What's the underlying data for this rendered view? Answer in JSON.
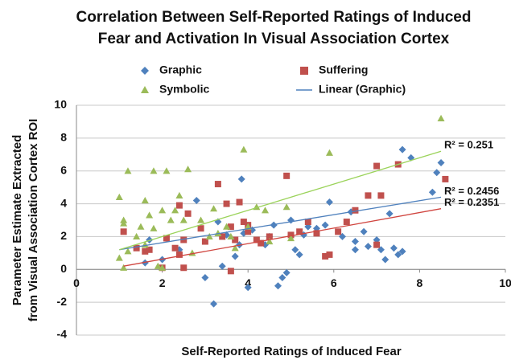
{
  "chart_data": {
    "type": "scatter",
    "title": [
      "Correlation Between Self-Reported Ratings of Induced",
      "Fear and Activation In Visual Association Cortex"
    ],
    "xlabel": "Self-Reported Ratings of Induced Fear",
    "ylabel": [
      "Parameter Estimate Extracted",
      "from Visual Association Cortex ROI"
    ],
    "xlim": [
      0,
      10
    ],
    "xticks": [
      0,
      2,
      4,
      6,
      8,
      10
    ],
    "ylim": [
      -4,
      10
    ],
    "yticks": [
      -4,
      -2,
      0,
      2,
      4,
      6,
      8,
      10
    ],
    "grid": true,
    "series": [
      {
        "name": "Graphic",
        "color": "#4f81bd",
        "marker": "diamond",
        "x": [
          1.6,
          1.7,
          2.0,
          2.4,
          2.8,
          3.0,
          3.2,
          3.3,
          3.4,
          3.5,
          3.7,
          3.8,
          3.85,
          3.9,
          4.0,
          4.1,
          4.4,
          4.5,
          4.6,
          4.7,
          4.8,
          4.9,
          5.0,
          5.0,
          5.1,
          5.2,
          5.3,
          5.4,
          5.6,
          5.8,
          5.9,
          6.2,
          6.4,
          6.5,
          6.5,
          6.7,
          6.8,
          7.0,
          7.1,
          7.2,
          7.3,
          7.4,
          7.5,
          7.6,
          7.6,
          7.8,
          8.3,
          8.4,
          8.5
        ],
        "values": [
          0.4,
          1.8,
          0.6,
          1.2,
          4.2,
          -0.5,
          -2.1,
          2.9,
          0.2,
          2.1,
          0.8,
          1.5,
          5.5,
          2.2,
          -1.1,
          2.4,
          1.5,
          2.0,
          2.7,
          -1.0,
          -0.5,
          -0.2,
          3.0,
          2.0,
          1.2,
          0.9,
          2.1,
          2.6,
          2.5,
          2.7,
          4.1,
          2.0,
          3.5,
          1.7,
          1.2,
          2.3,
          1.4,
          1.8,
          1.2,
          0.6,
          3.4,
          1.3,
          0.9,
          1.1,
          7.3,
          6.8,
          4.7,
          5.9,
          6.5
        ]
      },
      {
        "name": "Suffering",
        "color": "#c0504d",
        "marker": "square",
        "x": [
          1.1,
          1.4,
          1.6,
          1.7,
          2.0,
          2.1,
          2.3,
          2.4,
          2.4,
          2.5,
          2.6,
          2.9,
          3.0,
          3.3,
          3.4,
          3.5,
          3.6,
          3.7,
          3.8,
          3.9,
          4.0,
          4.0,
          4.2,
          4.3,
          4.5,
          4.9,
          5.0,
          5.2,
          5.4,
          5.6,
          5.8,
          5.9,
          6.1,
          6.3,
          6.5,
          6.8,
          7.0,
          7.1,
          7.0,
          7.5,
          8.6,
          3.6,
          2.5
        ],
        "values": [
          2.3,
          1.3,
          1.1,
          1.2,
          0.1,
          1.9,
          1.3,
          0.9,
          3.9,
          1.8,
          3.4,
          2.5,
          1.7,
          5.2,
          2.0,
          4.0,
          2.6,
          1.8,
          4.1,
          2.9,
          2.7,
          2.3,
          1.8,
          1.6,
          2.0,
          5.7,
          2.1,
          2.3,
          2.9,
          2.2,
          0.8,
          0.9,
          2.3,
          2.9,
          3.6,
          4.5,
          6.3,
          4.5,
          1.5,
          6.4,
          5.5,
          -0.1,
          0.1
        ]
      },
      {
        "name": "Symbolic",
        "color": "#9bbb59",
        "marker": "triangle",
        "x": [
          1.0,
          1.0,
          1.1,
          1.1,
          1.2,
          1.2,
          1.4,
          1.5,
          1.6,
          1.6,
          1.7,
          1.8,
          1.8,
          1.9,
          2.0,
          2.1,
          2.2,
          2.3,
          2.4,
          2.5,
          2.6,
          2.7,
          2.9,
          3.1,
          3.2,
          3.3,
          3.5,
          3.6,
          3.7,
          3.9,
          4.0,
          4.2,
          4.4,
          4.5,
          4.9,
          5.0,
          5.9,
          8.5,
          1.1,
          2.0
        ],
        "values": [
          4.4,
          0.7,
          2.8,
          3.0,
          6.0,
          1.1,
          2.0,
          2.6,
          1.5,
          4.2,
          3.3,
          2.5,
          6.0,
          0.2,
          3.6,
          6.0,
          3.0,
          3.6,
          4.5,
          3.0,
          6.1,
          1.0,
          3.0,
          2.0,
          3.7,
          2.2,
          2.6,
          2.0,
          1.3,
          7.3,
          2.6,
          3.8,
          3.6,
          1.7,
          3.8,
          1.9,
          7.1,
          9.2,
          0.1,
          0.1
        ]
      }
    ],
    "trendlines": [
      {
        "name": "Linear (Graphic)",
        "color": "#4f81bd",
        "x": [
          1.0,
          8.5
        ],
        "values": [
          1.2,
          4.4
        ],
        "label": "R² = 0.2456"
      },
      {
        "color": "#d0453f",
        "x": [
          1.1,
          8.5
        ],
        "values": [
          0.2,
          3.7
        ],
        "label": "R² = 0.2351"
      },
      {
        "color": "#9bd35a",
        "x": [
          1.0,
          8.5
        ],
        "values": [
          1.2,
          7.2
        ],
        "label": "R² = 0.251"
      }
    ]
  }
}
